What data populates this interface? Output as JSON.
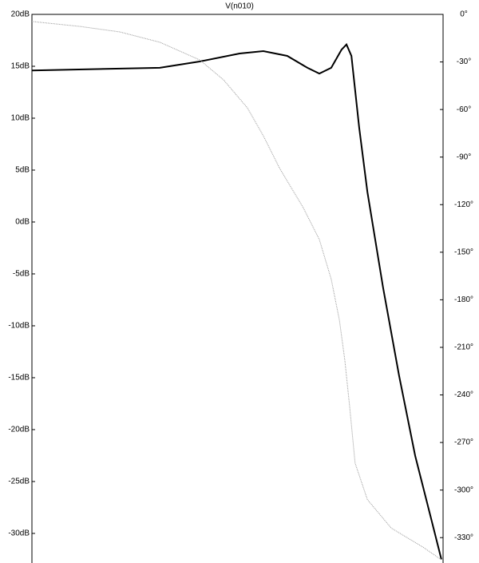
{
  "chart_data": {
    "type": "line",
    "title": "V(n010)",
    "xlim": [
      0,
      100
    ],
    "ylim": [
      -32.85,
      20
    ],
    "yticks": [
      {
        "value": 20,
        "label": "20dB"
      },
      {
        "value": 15,
        "label": "15dB"
      },
      {
        "value": 10,
        "label": "10dB"
      },
      {
        "value": 5,
        "label": "5dB"
      },
      {
        "value": 0,
        "label": "0dB"
      },
      {
        "value": -5,
        "label": "-5dB"
      },
      {
        "value": -10,
        "label": "-10dB"
      },
      {
        "value": -15,
        "label": "-15dB"
      },
      {
        "value": -20,
        "label": "-20dB"
      },
      {
        "value": -25,
        "label": "-25dB"
      },
      {
        "value": -30,
        "label": "-30dB"
      }
    ],
    "y2lim": [
      -346,
      0
    ],
    "y2ticks": [
      {
        "value": 0,
        "label": "0°"
      },
      {
        "value": -30,
        "label": "-30°"
      },
      {
        "value": -60,
        "label": "-60°"
      },
      {
        "value": -90,
        "label": "-90°"
      },
      {
        "value": -120,
        "label": "-120°"
      },
      {
        "value": -150,
        "label": "-150°"
      },
      {
        "value": -180,
        "label": "-180°"
      },
      {
        "value": -210,
        "label": "-210°"
      },
      {
        "value": -240,
        "label": "-240°"
      },
      {
        "value": -270,
        "label": "-270°"
      },
      {
        "value": -300,
        "label": "-300°"
      },
      {
        "value": -330,
        "label": "-330°"
      }
    ],
    "series": [
      {
        "name": "V(n010)",
        "color": "#000000",
        "x": [
          0,
          31.1,
          40.8,
          50.5,
          56.3,
          62.1,
          67,
          69.9,
          72.8,
          75.3,
          76.5,
          77.7,
          79.6,
          81.6,
          85.4,
          89.3,
          93.2,
          97.1,
          99.6
        ],
        "values": [
          14.6,
          14.85,
          15.46,
          16.23,
          16.46,
          16,
          14.85,
          14.3,
          14.85,
          16.6,
          17.1,
          16,
          9.1,
          2.9,
          -6.3,
          -14.8,
          -22.5,
          -28.6,
          -32.5
        ]
      },
      {
        "name": "V(n010)",
        "color": "#999999",
        "axis": "y2",
        "x": [
          0,
          11.7,
          21.4,
          31.1,
          40.8,
          46.6,
          52.4,
          56.3,
          60.2,
          66,
          69.9,
          72.8,
          74.8,
          76.1,
          77.3,
          78.6,
          81.6,
          87.4,
          95.1,
          99.6
        ],
        "values": [
          -4.5,
          -7.6,
          -11.1,
          -17.6,
          -28.7,
          -41.3,
          -59,
          -76.6,
          -96.8,
          -122,
          -142,
          -167,
          -193,
          -218,
          -248,
          -283,
          -306,
          -324,
          -336,
          -344
        ]
      }
    ]
  }
}
